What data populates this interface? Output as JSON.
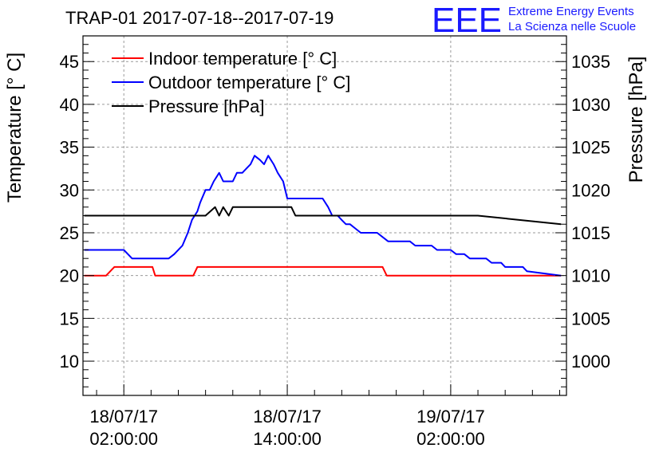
{
  "chart_data": {
    "type": "line",
    "title": "TRAP-01 2017-07-18--2017-07-19",
    "logo": {
      "text": "EEE",
      "line1": "Extreme Energy Events",
      "line2": "La Scienza nelle Scuole",
      "color": "#1a1aff"
    },
    "ylabel": "Temperature [° C]",
    "y2label": "Pressure [hPa]",
    "xlim_hours": [
      -3.0,
      32.5
    ],
    "ylim": [
      6,
      48
    ],
    "y2lim": [
      996,
      1038
    ],
    "yticks": [
      10,
      15,
      20,
      25,
      30,
      35,
      40,
      45
    ],
    "y2ticks": [
      1000,
      1005,
      1010,
      1015,
      1020,
      1025,
      1030,
      1035
    ],
    "xticks": [
      {
        "hour": 0,
        "date": "18/07/17",
        "time": "02:00:00"
      },
      {
        "hour": 12,
        "date": "18/07/17",
        "time": "14:00:00"
      },
      {
        "hour": 24,
        "date": "19/07/17",
        "time": "02:00:00"
      }
    ],
    "legend_position": "top-left",
    "series": [
      {
        "name": "Indoor temperature [° C]",
        "color": "#ff0000",
        "axis": "left",
        "x": [
          -2.9,
          -1.3,
          -0.7,
          2.1,
          2.3,
          5.1,
          5.4,
          19.0,
          19.3,
          32.1
        ],
        "y": [
          20,
          20,
          21,
          21,
          20,
          20,
          21,
          21,
          20,
          20
        ]
      },
      {
        "name": "Outdoor temperature [° C]",
        "color": "#0000ff",
        "axis": "left",
        "x": [
          -2.9,
          0.0,
          0.6,
          3.3,
          3.7,
          4.3,
          4.7,
          5.0,
          5.4,
          5.6,
          6.0,
          6.3,
          6.6,
          7.0,
          7.3,
          7.7,
          8.0,
          8.3,
          8.7,
          9.0,
          9.3,
          9.6,
          10.0,
          10.3,
          10.6,
          11.0,
          11.3,
          11.7,
          12.0,
          14.6,
          15.0,
          15.3,
          15.7,
          16.0,
          16.3,
          16.6,
          17.0,
          17.4,
          18.6,
          19.0,
          19.4,
          21.0,
          21.4,
          22.6,
          23.0,
          24.0,
          24.4,
          25.0,
          25.4,
          26.6,
          27.0,
          27.7,
          28.0,
          28.6,
          29.3,
          29.6,
          32.1
        ],
        "y": [
          23,
          23,
          22,
          22,
          22.5,
          23.5,
          25,
          26.5,
          27.5,
          28.5,
          30,
          30,
          31,
          32,
          31,
          31,
          31,
          32,
          32,
          32.5,
          33,
          34,
          33.5,
          33,
          34,
          33,
          32,
          31,
          29,
          29,
          28,
          27,
          27,
          26.5,
          26,
          26,
          25.5,
          25,
          25,
          24.5,
          24,
          24,
          23.5,
          23.5,
          23,
          23,
          22.5,
          22.5,
          22,
          22,
          21.5,
          21.5,
          21,
          21,
          21,
          20.5,
          20
        ]
      },
      {
        "name": "Pressure [hPa]",
        "color": "#000000",
        "axis": "right",
        "x": [
          -2.9,
          6.0,
          6.7,
          7.0,
          7.3,
          7.7,
          8.0,
          8.3,
          11.4,
          11.6,
          12.0,
          12.3,
          12.6,
          13.0,
          13.4,
          24.5,
          26.0,
          32.1
        ],
        "y": [
          1017,
          1017,
          1018,
          1017,
          1018,
          1017,
          1018,
          1018,
          1018,
          1018,
          1018,
          1018,
          1017,
          1017,
          1017,
          1017,
          1017,
          1016
        ]
      }
    ]
  }
}
